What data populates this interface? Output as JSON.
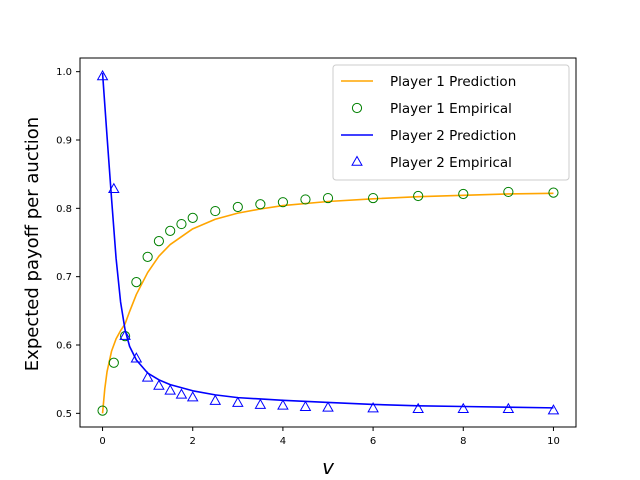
{
  "chart_data": {
    "type": "line",
    "title": "",
    "xlabel": "v",
    "ylabel": "Expected payoff per auction",
    "xlim": [
      -0.5,
      10.5
    ],
    "ylim": [
      0.48,
      1.02
    ],
    "xticks": [
      0,
      2,
      4,
      6,
      8,
      10
    ],
    "yticks": [
      0.5,
      0.6,
      0.7,
      0.8,
      0.9,
      1.0
    ],
    "xtick_labels": [
      "0",
      "2",
      "4",
      "6",
      "8",
      "10"
    ],
    "ytick_labels": [
      "0.5",
      "0.6",
      "0.7",
      "0.8",
      "0.9",
      "1.0"
    ],
    "grid": false,
    "legend_position": "top-right",
    "series": [
      {
        "name": "Player 1 Prediction",
        "kind": "line",
        "color": "#ffa500",
        "x": [
          0,
          0.05,
          0.1,
          0.2,
          0.3,
          0.4,
          0.5,
          0.6,
          0.75,
          1.0,
          1.25,
          1.5,
          2.0,
          2.5,
          3.0,
          3.5,
          4.0,
          5.0,
          6.0,
          7.0,
          8.0,
          9.0,
          10.0
        ],
        "y": [
          0.5,
          0.536,
          0.561,
          0.591,
          0.609,
          0.621,
          0.631,
          0.649,
          0.674,
          0.706,
          0.73,
          0.747,
          0.77,
          0.784,
          0.793,
          0.799,
          0.804,
          0.81,
          0.814,
          0.817,
          0.819,
          0.821,
          0.822
        ]
      },
      {
        "name": "Player 1 Empirical",
        "kind": "circle",
        "color": "#008000",
        "x": [
          0,
          0.25,
          0.5,
          0.75,
          1.0,
          1.25,
          1.5,
          1.75,
          2.0,
          2.5,
          3.0,
          3.5,
          4.0,
          4.5,
          5.0,
          6.0,
          7.0,
          8.0,
          9.0,
          10.0
        ],
        "y": [
          0.504,
          0.574,
          0.613,
          0.692,
          0.729,
          0.752,
          0.767,
          0.777,
          0.786,
          0.796,
          0.802,
          0.806,
          0.809,
          0.813,
          0.815,
          0.815,
          0.818,
          0.821,
          0.824,
          0.823
        ]
      },
      {
        "name": "Player 2 Prediction",
        "kind": "line",
        "color": "#0000ff",
        "x": [
          0,
          0.1,
          0.2,
          0.3,
          0.4,
          0.5,
          0.6,
          0.75,
          1.0,
          1.25,
          1.5,
          2.0,
          2.5,
          3.0,
          3.5,
          4.0,
          5.0,
          6.0,
          7.0,
          8.0,
          9.0,
          10.0
        ],
        "y": [
          0.998,
          0.905,
          0.814,
          0.727,
          0.663,
          0.622,
          0.598,
          0.578,
          0.559,
          0.549,
          0.542,
          0.533,
          0.527,
          0.523,
          0.521,
          0.519,
          0.516,
          0.513,
          0.511,
          0.51,
          0.509,
          0.508
        ]
      },
      {
        "name": "Player 2 Empirical",
        "kind": "triangle",
        "color": "#0000ff",
        "x": [
          0,
          0.25,
          0.5,
          0.75,
          1.0,
          1.25,
          1.5,
          1.75,
          2.0,
          2.5,
          3.0,
          3.5,
          4.0,
          4.5,
          5.0,
          6.0,
          7.0,
          8.0,
          9.0,
          10.0
        ],
        "y": [
          0.993,
          0.828,
          0.613,
          0.58,
          0.552,
          0.54,
          0.533,
          0.527,
          0.523,
          0.518,
          0.515,
          0.512,
          0.511,
          0.509,
          0.508,
          0.507,
          0.506,
          0.506,
          0.506,
          0.504
        ]
      }
    ]
  }
}
